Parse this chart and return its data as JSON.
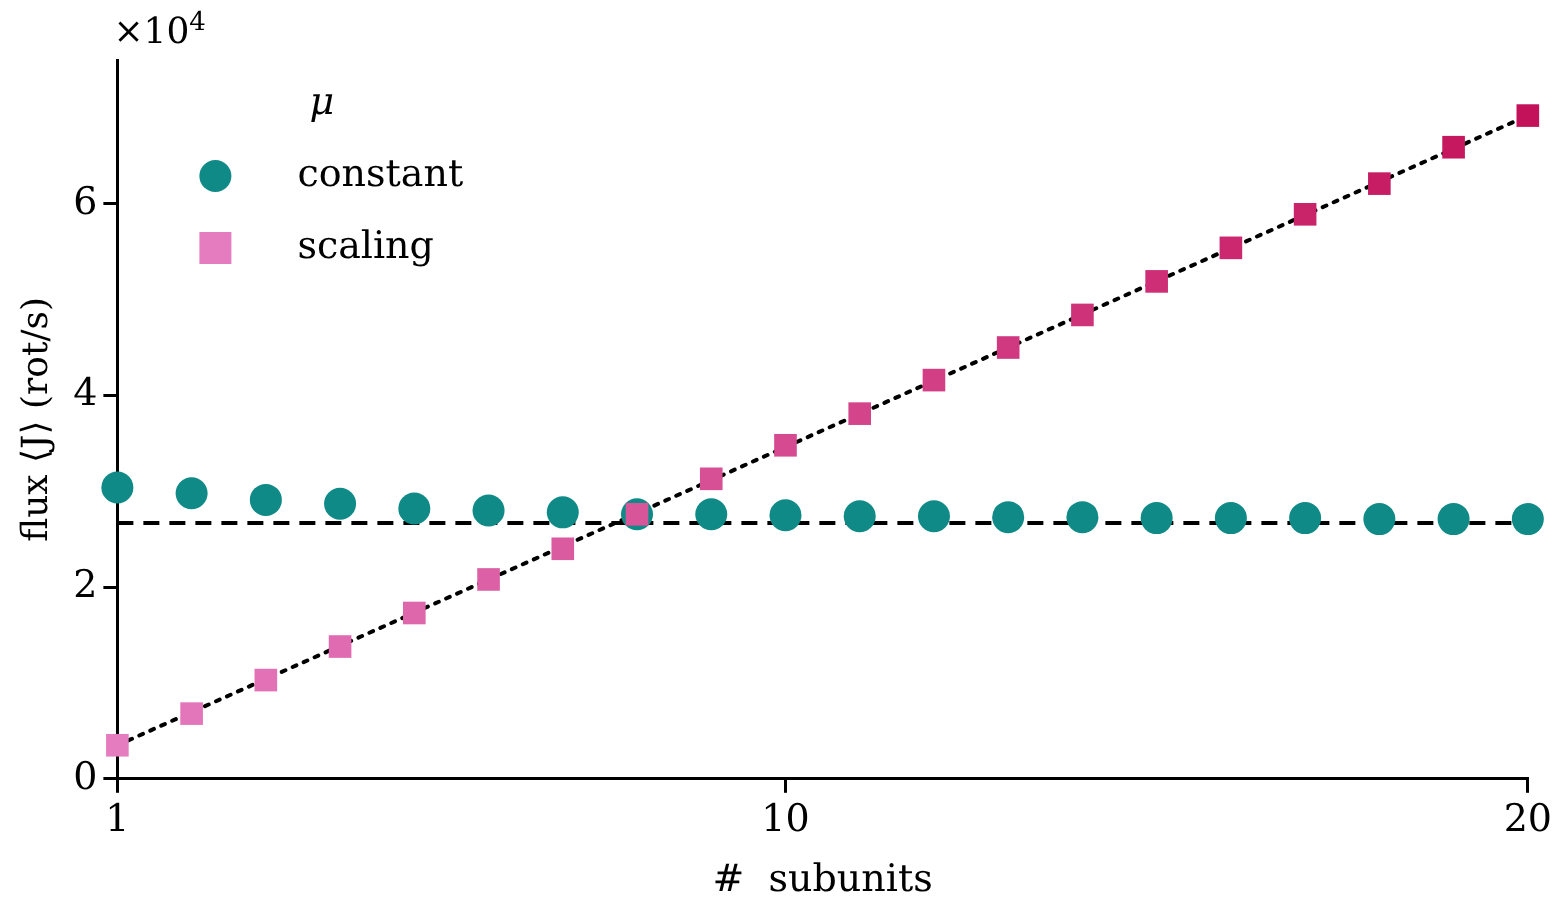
{
  "chart_data": {
    "type": "scatter",
    "xlabel": "#  subunits",
    "ylabel": "flux ⟨J⟩ (rot/s)",
    "legend_title": "μ",
    "legend": "top left",
    "grid": false,
    "annotations": [
      "×10$^{4}$"
    ],
    "xlim": [
      1,
      20
    ],
    "xticks": [
      1,
      10,
      20
    ],
    "ylim": [
      0,
      7.5
    ],
    "yticks": [
      0,
      2,
      4,
      6
    ],
    "x": [
      1,
      2,
      3,
      4,
      5,
      6,
      7,
      8,
      9,
      10,
      11,
      12,
      13,
      14,
      15,
      16,
      17,
      18,
      19,
      20
    ],
    "ref_lines": [
      {
        "axis": "y",
        "value": 2.67,
        "color": "#000000",
        "line_style": "dashed"
      }
    ],
    "series": [
      {
        "name": "constant",
        "marker": "circle",
        "color": "#0f8a86",
        "values": [
          3.04,
          2.98,
          2.91,
          2.87,
          2.82,
          2.8,
          2.78,
          2.76,
          2.76,
          2.75,
          2.74,
          2.74,
          2.73,
          2.73,
          2.72,
          2.72,
          2.72,
          2.71,
          2.71,
          2.71
        ]
      },
      {
        "name": "scaling",
        "marker": "square",
        "color": "#e57cc0",
        "colors": [
          "#e57cc0",
          "#e376bb",
          "#e271b5",
          "#e06bb0",
          "#de66ab",
          "#dc60a5",
          "#db5ba0",
          "#d9559a",
          "#d74f95",
          "#d54a90",
          "#d4448a",
          "#d23f85",
          "#d03980",
          "#ce337a",
          "#cd2e75",
          "#cb286f",
          "#c9236a",
          "#c71d65",
          "#c6185f",
          "#c4125a"
        ],
        "values": [
          0.35,
          0.68,
          1.03,
          1.38,
          1.73,
          2.08,
          2.4,
          2.76,
          3.13,
          3.48,
          3.81,
          4.16,
          4.5,
          4.84,
          5.19,
          5.54,
          5.89,
          6.21,
          6.59,
          6.92
        ]
      },
      {
        "type": "line",
        "marker": "none",
        "line_style": "dotted",
        "color": "#000000",
        "x": [
          1,
          20
        ],
        "values": [
          0.35,
          6.92
        ]
      }
    ]
  }
}
